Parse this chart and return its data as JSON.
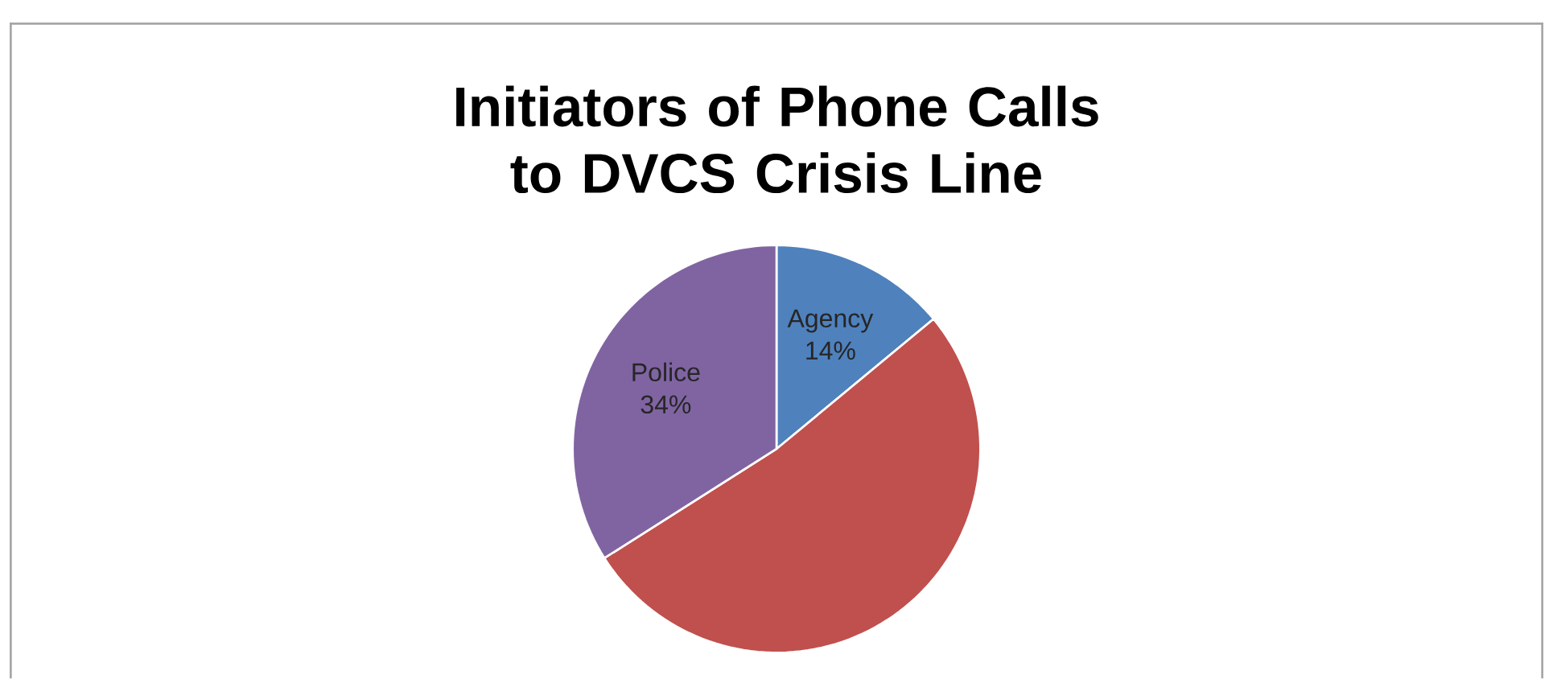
{
  "chart_data": {
    "type": "pie",
    "title": "Initiators of Phone Calls to DVCS Crisis Line",
    "categories": [
      "Agency",
      null,
      "Police"
    ],
    "values": [
      14,
      52,
      34
    ],
    "value_labels": [
      "14%",
      null,
      "34%"
    ],
    "colors": [
      "#4f81bd",
      "#c0504d",
      "#8064a2"
    ]
  }
}
